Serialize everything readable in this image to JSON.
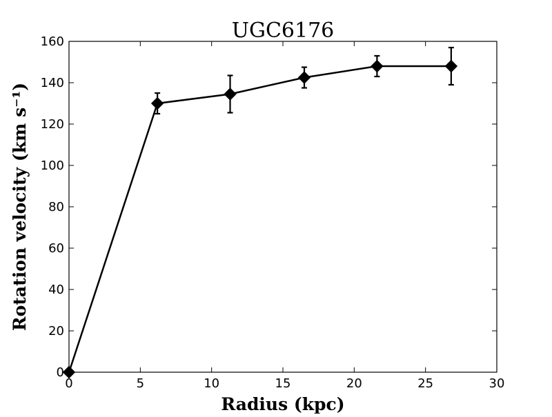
{
  "chart_data": {
    "type": "line",
    "title": "UGC6176",
    "xlabel": "Radius (kpc)",
    "ylabel": "Rotation velocity (km s⁻¹)",
    "xlim": [
      0,
      30
    ],
    "ylim": [
      0,
      160
    ],
    "xticks": [
      0,
      5,
      10,
      15,
      20,
      25,
      30
    ],
    "yticks": [
      0,
      20,
      40,
      60,
      80,
      100,
      120,
      140,
      160
    ],
    "grid": false,
    "marker": "diamond",
    "colors": {
      "line": "#000000",
      "marker": "#000000",
      "axes": "#000000"
    },
    "series": [
      {
        "x": [
          0,
          6.2,
          11.3,
          16.5,
          21.6,
          26.8
        ],
        "y": [
          0,
          130,
          134.5,
          142.5,
          148,
          148
        ],
        "yerr": [
          0,
          5,
          9,
          5,
          5,
          9
        ]
      }
    ]
  }
}
